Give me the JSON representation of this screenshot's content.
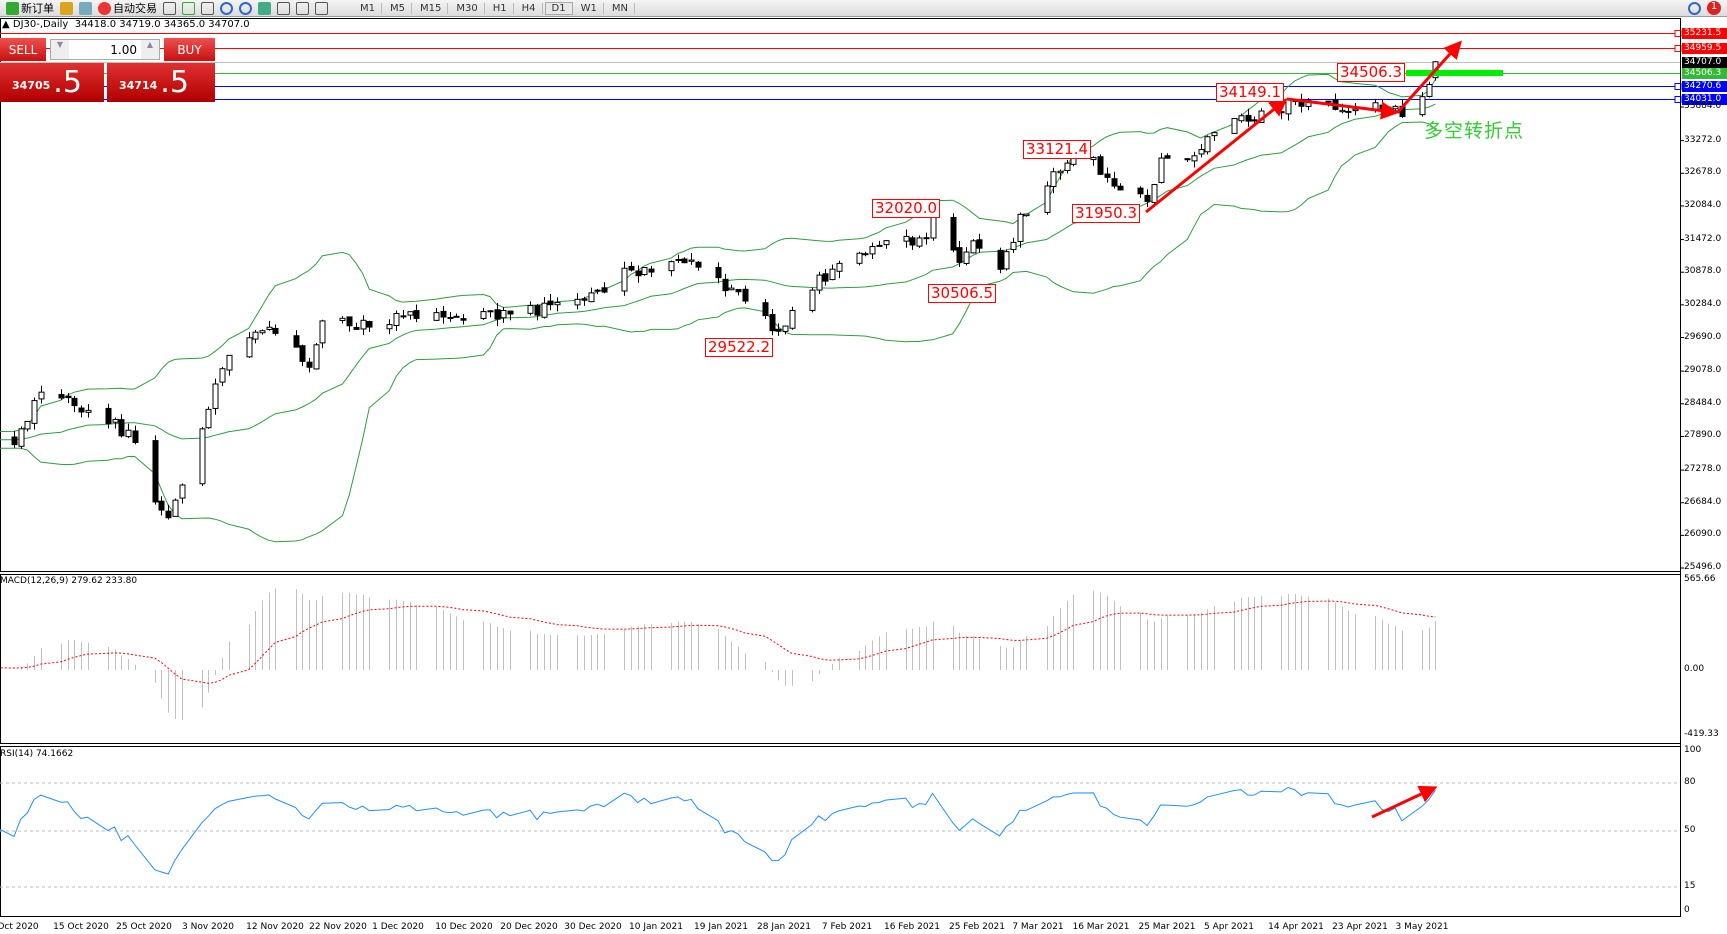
{
  "toolbar": {
    "new_order": "新订单",
    "auto_trading": "自动交易",
    "timeframes": [
      "M1",
      "M5",
      "M15",
      "M30",
      "H1",
      "H4",
      "D1",
      "W1",
      "MN"
    ],
    "active_timeframe": "D1",
    "notification_count": "1"
  },
  "header": {
    "symbol": "DJ30-,Daily",
    "ohlc": "34418.0 34719.0 34365.0 34707.0"
  },
  "trade_panel": {
    "sell_label": "SELL",
    "buy_label": "BUY",
    "lot": "1.00",
    "sell_small": "34705",
    "sell_big": ".5",
    "buy_small": "34714",
    "buy_big": ".5"
  },
  "price_axis": {
    "ticks": [
      "33884.0",
      "33272.0",
      "32678.0",
      "32084.0",
      "31472.0",
      "30878.0",
      "30284.0",
      "29690.0",
      "29078.0",
      "28484.0",
      "27890.0",
      "27278.0",
      "26684.0",
      "26090.0",
      "25496.0"
    ]
  },
  "levels": [
    {
      "value": "35231.5",
      "color": "#ff0000",
      "label_bg": "#ff0000"
    },
    {
      "value": "34959.5",
      "color": "#ff0000",
      "label_bg": "#ff0000"
    },
    {
      "value": "34707.0",
      "color": "#c0c0c0",
      "label_bg": "#000000"
    },
    {
      "value": "34506.3",
      "color": "#33bb33",
      "label_bg": "#33bb33"
    },
    {
      "value": "34270.6",
      "color": "#0000ff",
      "label_bg": "#0000ff"
    },
    {
      "value": "34031.0",
      "color": "#0000ff",
      "label_bg": "#0000ff"
    }
  ],
  "annotations": [
    "34506.3",
    "34149.1",
    "33121.4",
    "32020.0",
    "31950.3",
    "30506.5",
    "29522.2"
  ],
  "note": "多空转折点",
  "macd": {
    "title": "MACD(12,26,9) 279.62 233.80",
    "axis": [
      "565.66",
      "0.00",
      "-419.33"
    ]
  },
  "rsi": {
    "title": "RSI(14) 74.1662",
    "axis": [
      "100",
      "80",
      "50",
      "15",
      "0"
    ]
  },
  "dates": [
    "Oct 2020",
    "15 Oct 2020",
    "25 Oct 2020",
    "3 Nov 2020",
    "12 Nov 2020",
    "22 Nov 2020",
    "1 Dec 2020",
    "10 Dec 2020",
    "20 Dec 2020",
    "30 Dec 2020",
    "10 Jan 2021",
    "19 Jan 2021",
    "28 Jan 2021",
    "7 Feb 2021",
    "16 Feb 2021",
    "25 Feb 2021",
    "7 Mar 2021",
    "16 Mar 2021",
    "25 Mar 2021",
    "5 Apr 2021",
    "14 Apr 2021",
    "23 Apr 2021",
    "3 May 2021"
  ],
  "colors": {
    "bands": "#2e9e3e",
    "macd_hist": "#c0c0c0",
    "macd_signal": "#ff0000",
    "rsi": "#1e90ff",
    "arrows": "#ff0000"
  },
  "chart_data": {
    "type": "candlestick",
    "symbol": "DJ30-",
    "timeframe": "Daily",
    "ylim": [
      25496,
      35231.5
    ],
    "last_bar": {
      "open": 34418.0,
      "high": 34719.0,
      "low": 34365.0,
      "close": 34707.0
    },
    "approx_closes": [
      [
        "2020-10-05",
        27818
      ],
      [
        "2020-10-09",
        28719
      ],
      [
        "2020-10-19",
        28218
      ],
      [
        "2020-10-23",
        27818
      ],
      [
        "2020-10-26",
        26817
      ],
      [
        "2020-10-28",
        26317
      ],
      [
        "2020-10-30",
        27017
      ],
      [
        "2020-11-03",
        28418
      ],
      [
        "2020-11-06",
        29420
      ],
      [
        "2020-11-12",
        29820
      ],
      [
        "2020-11-18",
        29220
      ],
      [
        "2020-11-20",
        30020
      ],
      [
        "2020-11-27",
        29920
      ],
      [
        "2020-12-04",
        30120
      ],
      [
        "2020-12-17",
        30120
      ],
      [
        "2020-12-28",
        30320
      ],
      [
        "2021-01-05",
        30920
      ],
      [
        "2021-01-15",
        31020
      ],
      [
        "2021-01-25",
        30020
      ],
      [
        "2021-01-27",
        29820
      ],
      [
        "2021-02-01",
        30620
      ],
      [
        "2021-02-09",
        31320
      ],
      [
        "2021-02-18",
        31520
      ],
      [
        "2021-02-19",
        31920
      ],
      [
        "2021-02-23",
        31020
      ],
      [
        "2021-02-25",
        31520
      ],
      [
        "2021-03-01",
        30920
      ],
      [
        "2021-03-04",
        31820
      ],
      [
        "2021-03-10",
        32822
      ],
      [
        "2021-03-15",
        32922
      ],
      [
        "2021-03-17",
        32522
      ],
      [
        "2021-03-23",
        32222
      ],
      [
        "2021-03-25",
        32922
      ],
      [
        "2021-03-31",
        33022
      ],
      [
        "2021-04-01",
        33423
      ],
      [
        "2021-04-09",
        33724
      ],
      [
        "2021-04-14",
        34024
      ],
      [
        "2021-04-19",
        33924
      ],
      [
        "2021-04-30",
        33824
      ],
      [
        "2021-05-04",
        34224
      ],
      [
        "2021-05-05",
        34707
      ]
    ],
    "indicators": [
      "Bollinger Bands(20,2)",
      "MACD(12,26,9)",
      "RSI(14)"
    ],
    "rsi_levels": [
      80,
      50,
      15
    ]
  }
}
